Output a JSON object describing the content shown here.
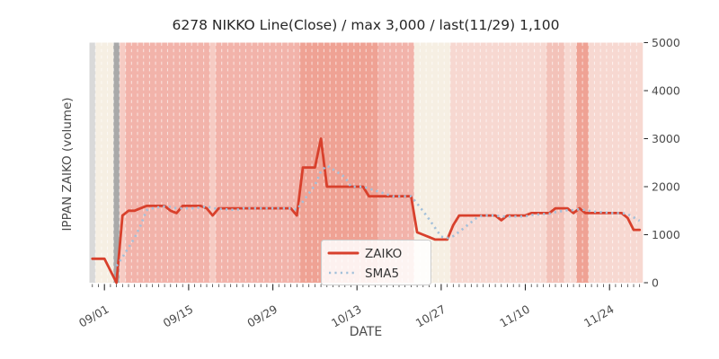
{
  "title": "6278 NIKKO Line(Close) / max 3,000 / last(11/29) 1,100",
  "axes": {
    "x_label": "DATE",
    "y_label": "IPPAN ZAIKO (volume)",
    "x_major_ticks": [
      "09/01",
      "09/15",
      "09/29",
      "10/13",
      "10/27",
      "11/10",
      "11/24"
    ],
    "y_ticks": [
      0,
      1000,
      2000,
      3000,
      4000,
      5000
    ],
    "y_range": [
      0,
      5000
    ]
  },
  "legend": {
    "position": "lower-center",
    "items": [
      {
        "label": "ZAIKO",
        "color": "#d8402c",
        "style": "solid"
      },
      {
        "label": "SMA5",
        "color": "#a3c0da",
        "style": "dotted"
      }
    ]
  },
  "colors": {
    "figure_background": "#ffffff",
    "zaiko_line": "#d8402c",
    "sma5_dots": "#a3c0da",
    "tick_text": "#4a4a4a",
    "title_text": "#262626",
    "gridline": "rgba(255,255,255,0.6)"
  },
  "chart_data": {
    "type": "line",
    "title": "6278 NIKKO Line(Close) / max 3,000 / last(11/29) 1,100",
    "xlabel": "DATE",
    "ylabel": "IPPAN ZAIKO (volume)",
    "ylim": [
      0,
      5000
    ],
    "grid": "vertical-dashed-white",
    "legend_position": "lower-center",
    "max_value": 3000,
    "last_value": 1100,
    "last_date": "11/29",
    "x": [
      "08/30",
      "08/31",
      "09/01",
      "09/02",
      "09/03",
      "09/04",
      "09/05",
      "09/06",
      "09/07",
      "09/08",
      "09/09",
      "09/10",
      "09/11",
      "09/12",
      "09/13",
      "09/14",
      "09/15",
      "09/16",
      "09/17",
      "09/18",
      "09/19",
      "09/20",
      "09/21",
      "09/22",
      "09/23",
      "09/24",
      "09/25",
      "09/26",
      "09/27",
      "09/28",
      "09/29",
      "09/30",
      "10/01",
      "10/02",
      "10/03",
      "10/04",
      "10/05",
      "10/06",
      "10/07",
      "10/08",
      "10/09",
      "10/10",
      "10/11",
      "10/12",
      "10/13",
      "10/14",
      "10/15",
      "10/16",
      "10/17",
      "10/18",
      "10/19",
      "10/20",
      "10/21",
      "10/22",
      "10/23",
      "10/24",
      "10/25",
      "10/26",
      "10/27",
      "10/28",
      "10/29",
      "10/30",
      "10/31",
      "11/01",
      "11/02",
      "11/03",
      "11/04",
      "11/05",
      "11/06",
      "11/07",
      "11/08",
      "11/09",
      "11/10",
      "11/11",
      "11/12",
      "11/13",
      "11/14",
      "11/15",
      "11/16",
      "11/17",
      "11/18",
      "11/19",
      "11/20",
      "11/21",
      "11/22",
      "11/23",
      "11/24",
      "11/25",
      "11/26",
      "11/27",
      "11/28",
      "11/29"
    ],
    "series": [
      {
        "name": "ZAIKO",
        "color": "#d8402c",
        "style": "solid",
        "values": [
          500,
          500,
          500,
          250,
          0,
          1400,
          1500,
          1500,
          1550,
          1600,
          1600,
          1600,
          1600,
          1500,
          1450,
          1600,
          1600,
          1600,
          1600,
          1550,
          1400,
          1550,
          1550,
          1550,
          1550,
          1550,
          1550,
          1550,
          1550,
          1550,
          1550,
          1550,
          1550,
          1550,
          1400,
          2400,
          2400,
          2400,
          3000,
          2000,
          2000,
          2000,
          2000,
          2000,
          2000,
          2000,
          1800,
          1800,
          1800,
          1800,
          1800,
          1800,
          1800,
          1800,
          1050,
          1000,
          950,
          900,
          900,
          900,
          1200,
          1400,
          1400,
          1400,
          1400,
          1400,
          1400,
          1400,
          1300,
          1400,
          1400,
          1400,
          1400,
          1450,
          1450,
          1450,
          1450,
          1550,
          1550,
          1550,
          1450,
          1550,
          1450,
          1450,
          1450,
          1450,
          1450,
          1450,
          1450,
          1350,
          1100,
          1100
        ]
      },
      {
        "name": "SMA5",
        "color": "#a3c0da",
        "style": "dotted",
        "values": [
          null,
          null,
          null,
          null,
          350,
          530,
          730,
          930,
          1190,
          1510,
          1550,
          1570,
          1590,
          1580,
          1550,
          1550,
          1550,
          1550,
          1570,
          1590,
          1550,
          1540,
          1530,
          1520,
          1520,
          1550,
          1550,
          1550,
          1550,
          1550,
          1550,
          1550,
          1550,
          1550,
          1520,
          1690,
          1860,
          2030,
          2320,
          2440,
          2360,
          2280,
          2200,
          2000,
          2000,
          2000,
          1960,
          1920,
          1880,
          1840,
          1800,
          1800,
          1800,
          1800,
          1650,
          1490,
          1320,
          1140,
          960,
          930,
          970,
          1060,
          1160,
          1260,
          1360,
          1400,
          1400,
          1400,
          1380,
          1380,
          1380,
          1380,
          1380,
          1410,
          1420,
          1430,
          1440,
          1470,
          1490,
          1510,
          1510,
          1530,
          1510,
          1490,
          1470,
          1470,
          1450,
          1450,
          1450,
          1430,
          1360,
          1290
        ]
      }
    ],
    "background_bands": {
      "palette": {
        "gray": "#d9d9d9",
        "beige": "#f6efe3",
        "darkgray": "#a9a9a9",
        "salmon": "#f2b3aa",
        "darksalmon": "#efa294",
        "lightpink": "#f7d8d1",
        "midpink": "#f3c2b9",
        "fadedpink": "#f6cbc3"
      },
      "runs": [
        [
          "gray",
          1
        ],
        [
          "beige",
          3
        ],
        [
          "darkgray",
          1
        ],
        [
          "fadedpink",
          1
        ],
        [
          "salmon",
          14
        ],
        [
          "fadedpink",
          1
        ],
        [
          "salmon",
          14
        ],
        [
          "darksalmon",
          13
        ],
        [
          "salmon",
          6
        ],
        [
          "beige",
          6
        ],
        [
          "lightpink",
          16
        ],
        [
          "midpink",
          3
        ],
        [
          "lightpink",
          2
        ],
        [
          "darksalmon",
          2
        ],
        [
          "lightpink",
          9
        ]
      ]
    }
  }
}
